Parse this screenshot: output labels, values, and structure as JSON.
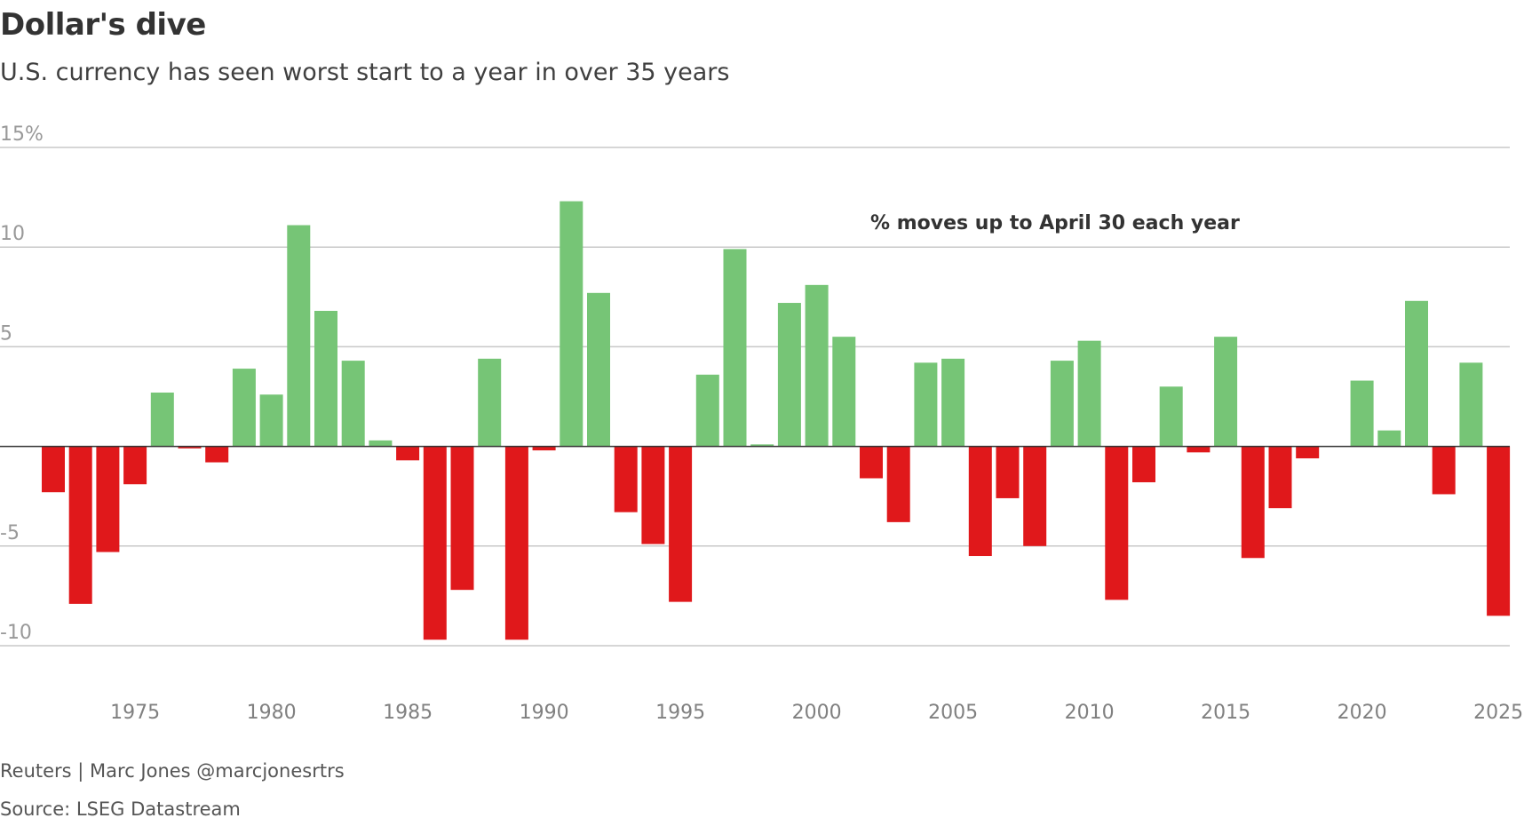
{
  "title": "Dollar's dive",
  "subtitle": "U.S. currency has seen worst start to a year in over 35 years",
  "credit": "Reuters | Marc Jones @marcjonesrtrs",
  "source": "Source: LSEG Datastream",
  "colors": {
    "positive": "#76c576",
    "negative": "#e0181b",
    "grid": "#c8c8c8",
    "axis": "#333333"
  },
  "chart_data": {
    "type": "bar",
    "annotation": "% moves up to April 30 each year",
    "ylim": [
      -10,
      15
    ],
    "y_ticks": [
      15,
      10,
      5,
      -5,
      -10
    ],
    "y_tick_labels": [
      "15%",
      "10",
      "5",
      "-5",
      "-10"
    ],
    "x_ticks": [
      "1975",
      "1980",
      "1985",
      "1990",
      "1995",
      "2000",
      "2005",
      "2010",
      "2015",
      "2020",
      "2025"
    ],
    "grid": true,
    "categories": [
      1972,
      1973,
      1974,
      1975,
      1976,
      1977,
      1978,
      1979,
      1980,
      1981,
      1982,
      1983,
      1984,
      1985,
      1986,
      1987,
      1988,
      1989,
      1990,
      1991,
      1992,
      1993,
      1994,
      1995,
      1996,
      1997,
      1998,
      1999,
      2000,
      2001,
      2002,
      2003,
      2004,
      2005,
      2006,
      2007,
      2008,
      2009,
      2010,
      2011,
      2012,
      2013,
      2014,
      2015,
      2016,
      2017,
      2018,
      2019,
      2020,
      2021,
      2022,
      2023,
      2024,
      2025
    ],
    "values": [
      -2.3,
      -7.9,
      -5.3,
      -1.9,
      2.7,
      -0.1,
      -0.8,
      3.9,
      2.6,
      11.1,
      6.8,
      4.3,
      0.3,
      -0.7,
      -9.7,
      -7.2,
      4.4,
      -9.7,
      -0.2,
      12.3,
      7.7,
      -3.3,
      -4.9,
      -7.8,
      3.6,
      9.9,
      0.1,
      7.2,
      8.1,
      5.5,
      -1.6,
      -3.8,
      4.2,
      4.4,
      -5.5,
      -2.6,
      -5.0,
      4.3,
      5.3,
      -7.7,
      -1.8,
      3.0,
      -0.3,
      5.5,
      -5.6,
      -3.1,
      -0.6,
      0.0,
      3.3,
      0.8,
      7.3,
      -2.4,
      4.2,
      -8.5
    ]
  }
}
